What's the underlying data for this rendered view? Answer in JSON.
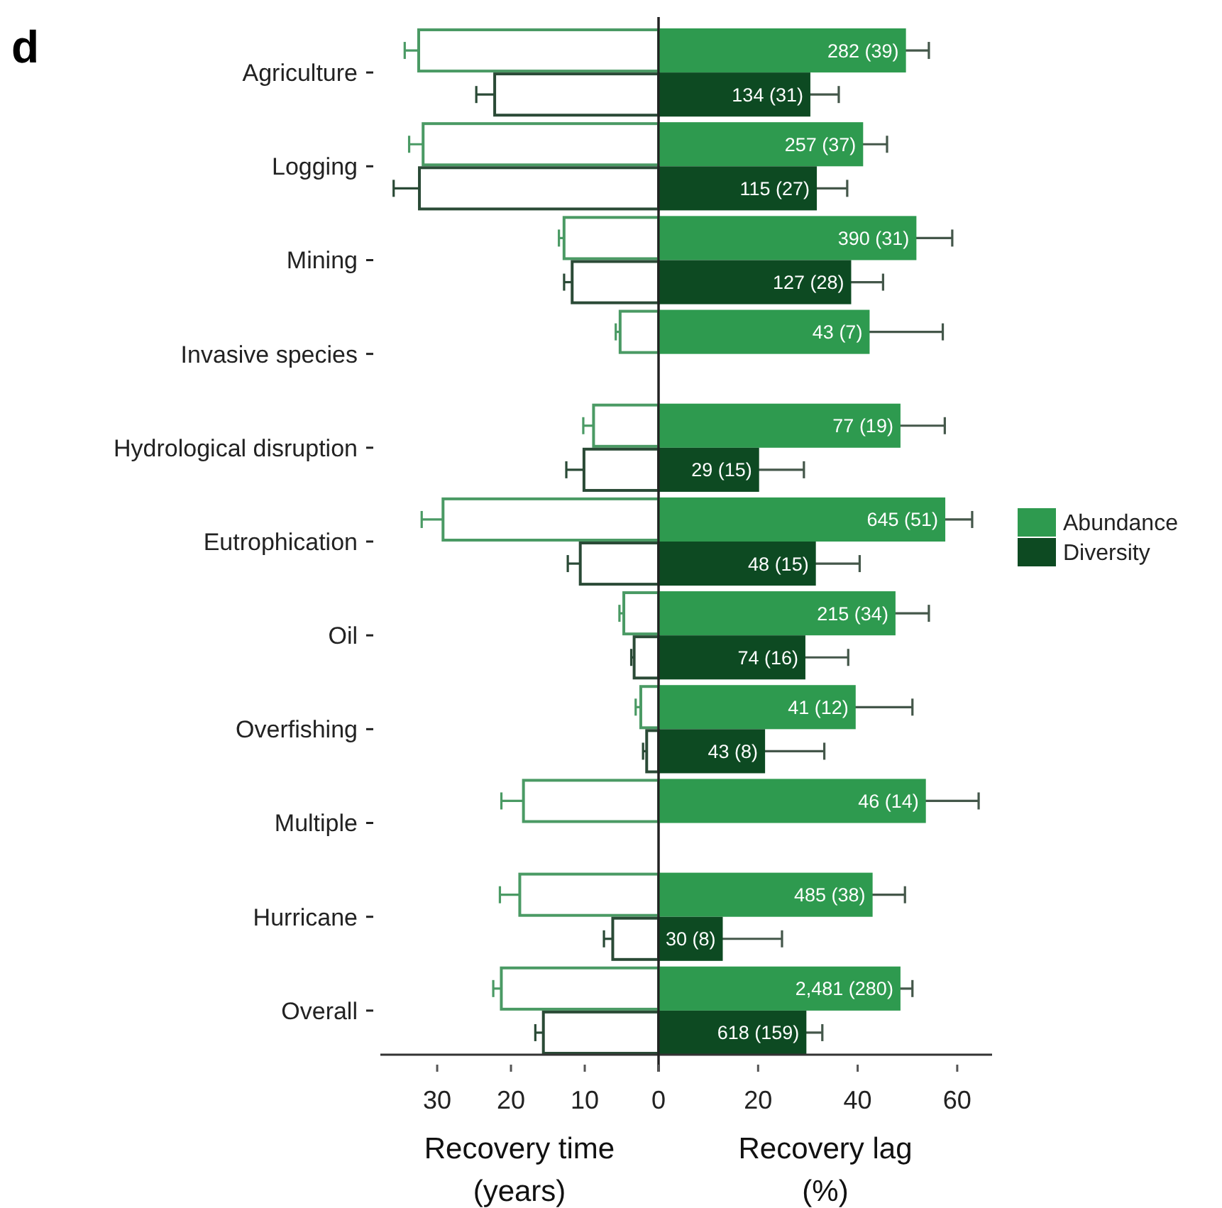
{
  "chart_data": [
    {
      "type": "bar",
      "orientation": "horizontal",
      "annotations": [
        "d"
      ],
      "xlabel": "Recovery time\n(years)",
      "categories": [
        "Agriculture",
        "Logging",
        "Mining",
        "Invasive species",
        "Hydrological disruption",
        "Eutrophication",
        "Oil",
        "Overfishing",
        "Multiple",
        "Hurricane",
        "Overall"
      ],
      "xlim": [
        37.7,
        0
      ],
      "xticks": [
        30,
        20,
        10,
        {
          "value": 0,
          "label": null
        }
      ],
      "series": [
        {
          "color": "#4a9a64",
          "values": [
            32.7,
            32.1,
            13.0,
            5.4,
            9.0,
            29.4,
            4.9,
            2.6,
            18.5,
            19.0,
            21.5
          ],
          "errors": [
            1.7,
            1.7,
            0.5,
            0.4,
            1.2,
            2.7,
            0.4,
            0.5,
            2.8,
            2.5,
            0.9
          ]
        },
        {
          "color": "#2a4a36",
          "values": [
            22.4,
            32.6,
            11.9,
            null,
            10.3,
            10.8,
            3.5,
            1.8,
            null,
            6.4,
            15.8
          ],
          "errors": [
            2.3,
            3.3,
            0.9,
            null,
            2.2,
            1.5,
            0.2,
            0.3,
            null,
            1.0,
            0.9
          ]
        }
      ]
    },
    {
      "type": "bar",
      "orientation": "horizontal",
      "xlabel": "Recovery lag\n(%)",
      "tick_labels": "x",
      "legend": "right",
      "categories": [
        "Agriculture",
        "Logging",
        "Mining",
        "Invasive species",
        "Hydrological disruption",
        "Eutrophication",
        "Oil",
        "Overfishing",
        "Multiple",
        "Hurricane",
        "Overall"
      ],
      "xlim": [
        0,
        67
      ],
      "xticks": [
        0,
        20,
        40,
        60
      ],
      "series": [
        {
          "name": "Abundance",
          "color": "#2e9a4f",
          "values": [
            49.7,
            41.1,
            51.8,
            42.4,
            48.6,
            57.6,
            47.6,
            39.6,
            53.7,
            43.0,
            48.6
          ],
          "errors": [
            4.6,
            4.8,
            7.2,
            14.7,
            8.9,
            5.4,
            6.7,
            11.4,
            10.6,
            6.5,
            2.4
          ]
        },
        {
          "name": "Diversity",
          "color": "#0d4a22",
          "values": [
            30.5,
            31.8,
            38.7,
            null,
            20.2,
            31.6,
            29.5,
            21.4,
            null,
            12.9,
            29.7
          ],
          "errors": [
            5.7,
            6.1,
            6.4,
            null,
            9.0,
            8.8,
            8.6,
            11.9,
            null,
            11.9,
            3.2
          ]
        }
      ],
      "annotations": [
        {
          "text": "282 (39)",
          "x": 49.7,
          "y": "Agriculture"
        },
        {
          "text": "134 (31)",
          "x": 30.5,
          "y": "Agriculture"
        },
        {
          "text": "257 (37)",
          "x": 41.1,
          "y": "Logging"
        },
        {
          "text": "115 (27)",
          "x": 31.8,
          "y": "Logging"
        },
        {
          "text": "390 (31)",
          "x": 51.8,
          "y": "Mining"
        },
        {
          "text": "127 (28)",
          "x": 38.7,
          "y": "Mining"
        },
        {
          "text": "43 (7)",
          "x": 42.4,
          "y": "Invasive species"
        },
        {
          "text": "77 (19)",
          "x": 48.6,
          "y": "Hydrological disruption"
        },
        {
          "text": "29 (15)",
          "x": 20.2,
          "y": "Hydrological disruption"
        },
        {
          "text": "645 (51)",
          "x": 57.6,
          "y": "Eutrophication"
        },
        {
          "text": "48 (15)",
          "x": 31.6,
          "y": "Eutrophication"
        },
        {
          "text": "215 (34)",
          "x": 47.6,
          "y": "Oil"
        },
        {
          "text": "74 (16)",
          "x": 29.5,
          "y": "Oil"
        },
        {
          "text": "41 (12)",
          "x": 39.6,
          "y": "Overfishing"
        },
        {
          "text": "43 (8)",
          "x": 21.4,
          "y": "Overfishing"
        },
        {
          "text": "46 (14)",
          "x": 53.7,
          "y": "Multiple"
        },
        {
          "text": "485 (38)",
          "x": 43.0,
          "y": "Hurricane"
        },
        {
          "text": "30 (8)",
          "x": 12.9,
          "y": "Hurricane"
        },
        {
          "text": "2,481 (280)",
          "x": 48.6,
          "y": "Overall"
        },
        {
          "text": "618 (159)",
          "x": 29.7,
          "y": "Overall"
        }
      ]
    }
  ]
}
